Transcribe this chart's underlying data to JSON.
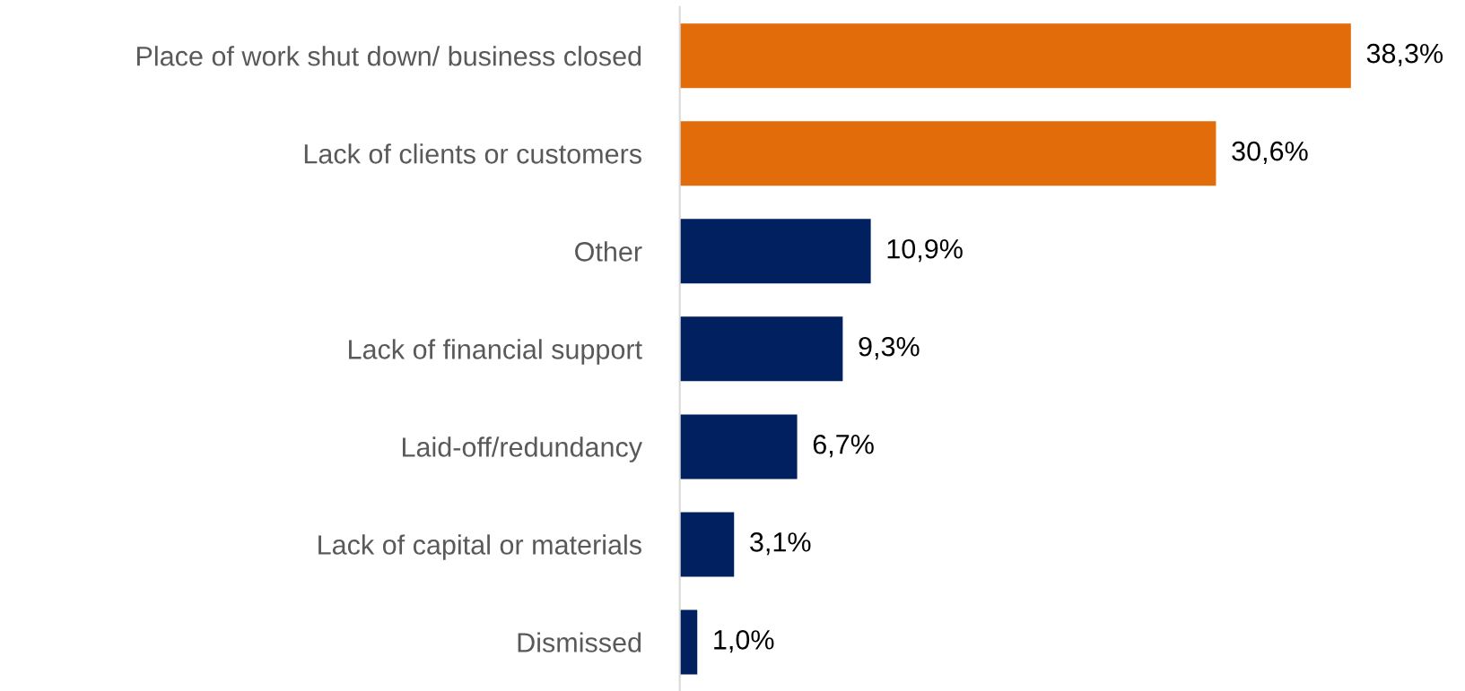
{
  "chart_data": {
    "type": "bar",
    "orientation": "horizontal",
    "categories": [
      "Place of work shut down/ business closed",
      "Lack of clients or customers",
      "Other",
      "Lack of financial support",
      "Laid-off/redundancy",
      "Lack of capital or materials",
      "Dismissed"
    ],
    "values": [
      38.3,
      30.6,
      10.9,
      9.3,
      6.7,
      3.1,
      1.0
    ],
    "colors": [
      "#e36c0a",
      "#e36c0a",
      "#002060",
      "#002060",
      "#002060",
      "#002060",
      "#002060"
    ],
    "value_labels": [
      "38,3%",
      "30,6%",
      "10,9%",
      "9,3%",
      "6,7%",
      "3,1%",
      "1,0%"
    ],
    "tick_labels": "y",
    "grid": false,
    "legend": false
  }
}
